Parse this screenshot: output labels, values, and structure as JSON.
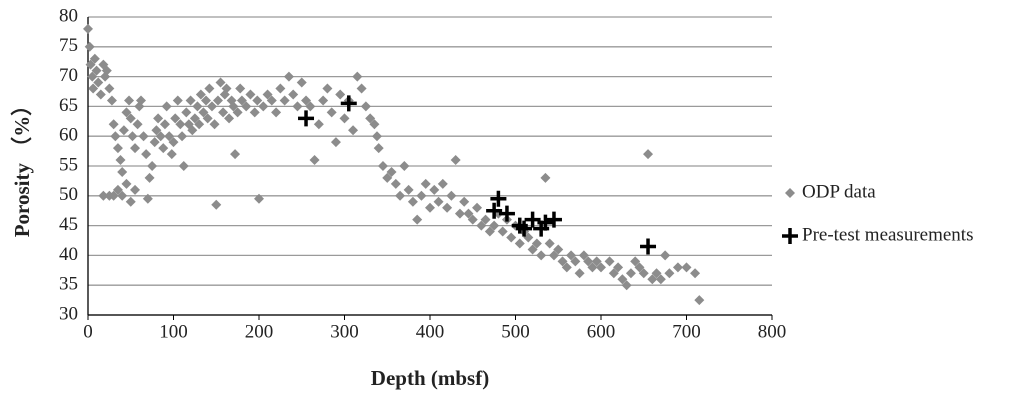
{
  "chart_data": {
    "type": "scatter",
    "x_label": "Depth (mbsf)",
    "y_label": "Porosity （%）",
    "xlim": [
      0,
      800
    ],
    "xticks": [
      0,
      100,
      200,
      300,
      400,
      500,
      600,
      700,
      800
    ],
    "ylim": [
      30,
      80
    ],
    "yticks": [
      30,
      35,
      40,
      45,
      50,
      55,
      60,
      65,
      70,
      75,
      80
    ],
    "grid": true,
    "legend": "right",
    "series": [
      {
        "name": "ODP data",
        "color": "#8c8c8c",
        "marker": "diamond",
        "x": [
          0,
          2,
          3,
          5,
          6,
          8,
          10,
          12,
          15,
          18,
          20,
          22,
          25,
          18,
          25,
          30,
          35,
          40,
          45,
          50,
          55,
          28,
          30,
          32,
          35,
          38,
          40,
          42,
          45,
          48,
          50,
          52,
          55,
          58,
          60,
          62,
          65,
          68,
          70,
          72,
          75,
          78,
          80,
          82,
          85,
          88,
          90,
          92,
          95,
          98,
          100,
          102,
          105,
          108,
          110,
          112,
          115,
          118,
          120,
          122,
          125,
          128,
          130,
          132,
          135,
          138,
          140,
          142,
          145,
          148,
          150,
          152,
          155,
          158,
          160,
          162,
          165,
          168,
          170,
          172,
          175,
          178,
          180,
          185,
          190,
          195,
          198,
          200,
          205,
          210,
          215,
          220,
          225,
          230,
          235,
          240,
          245,
          250,
          255,
          260,
          265,
          270,
          275,
          280,
          285,
          290,
          295,
          300,
          305,
          310,
          315,
          320,
          325,
          330,
          335,
          338,
          340,
          345,
          350,
          355,
          360,
          365,
          370,
          375,
          380,
          385,
          390,
          395,
          400,
          405,
          410,
          415,
          420,
          425,
          430,
          435,
          440,
          445,
          450,
          455,
          460,
          465,
          470,
          475,
          480,
          485,
          490,
          495,
          500,
          505,
          510,
          515,
          520,
          525,
          530,
          535,
          540,
          545,
          550,
          555,
          560,
          565,
          570,
          575,
          580,
          585,
          590,
          595,
          600,
          610,
          615,
          620,
          625,
          630,
          635,
          640,
          645,
          650,
          655,
          660,
          665,
          670,
          675,
          680,
          690,
          700,
          710,
          715
        ],
        "values": [
          78,
          75,
          72,
          70,
          68,
          73,
          71,
          69,
          67,
          72,
          70,
          71,
          68,
          50,
          50,
          50,
          51,
          50,
          52,
          49,
          51,
          66,
          62,
          60,
          58,
          56,
          54,
          61,
          64,
          66,
          63,
          60,
          58,
          62,
          65,
          66,
          60,
          57,
          49.5,
          53,
          55,
          59,
          61,
          63,
          60,
          58,
          62,
          65,
          60,
          57,
          59,
          63,
          66,
          62,
          60,
          55,
          64,
          62,
          66,
          61,
          63,
          65,
          62,
          67,
          64,
          66,
          63,
          68,
          65,
          62,
          48.5,
          66,
          69,
          64,
          67,
          68,
          63,
          66,
          65,
          57,
          64,
          68,
          66,
          65,
          67,
          64,
          66,
          49.5,
          65,
          67,
          66,
          64,
          68,
          66,
          70,
          67,
          65,
          69,
          66,
          65,
          56,
          62,
          66,
          68,
          64,
          59,
          67,
          63,
          66,
          61,
          70,
          68,
          65,
          63,
          62,
          60,
          58,
          55,
          53,
          54,
          52,
          50,
          55,
          51,
          49,
          46,
          50,
          52,
          48,
          51,
          49,
          52,
          48,
          50,
          56,
          47,
          49,
          47,
          46,
          48,
          45,
          46,
          44,
          45,
          47,
          44,
          46,
          43,
          45,
          42,
          44,
          43,
          41,
          42,
          40,
          53,
          42,
          40,
          41,
          39,
          38,
          40,
          39,
          37,
          40,
          39,
          38,
          39,
          38,
          39,
          37,
          38,
          36,
          35,
          37,
          39,
          38,
          37,
          57,
          36,
          37,
          36,
          40,
          37,
          38,
          38,
          37,
          32.5
        ]
      },
      {
        "name": "Pre-test measurements",
        "color": "#000000",
        "marker": "plus",
        "x": [
          255,
          305,
          475,
          480,
          490,
          505,
          510,
          520,
          530,
          535,
          545,
          655
        ],
        "values": [
          63,
          65.5,
          47.5,
          49.5,
          47,
          45,
          44.5,
          46,
          44.5,
          45.5,
          46,
          41.5
        ]
      }
    ]
  }
}
